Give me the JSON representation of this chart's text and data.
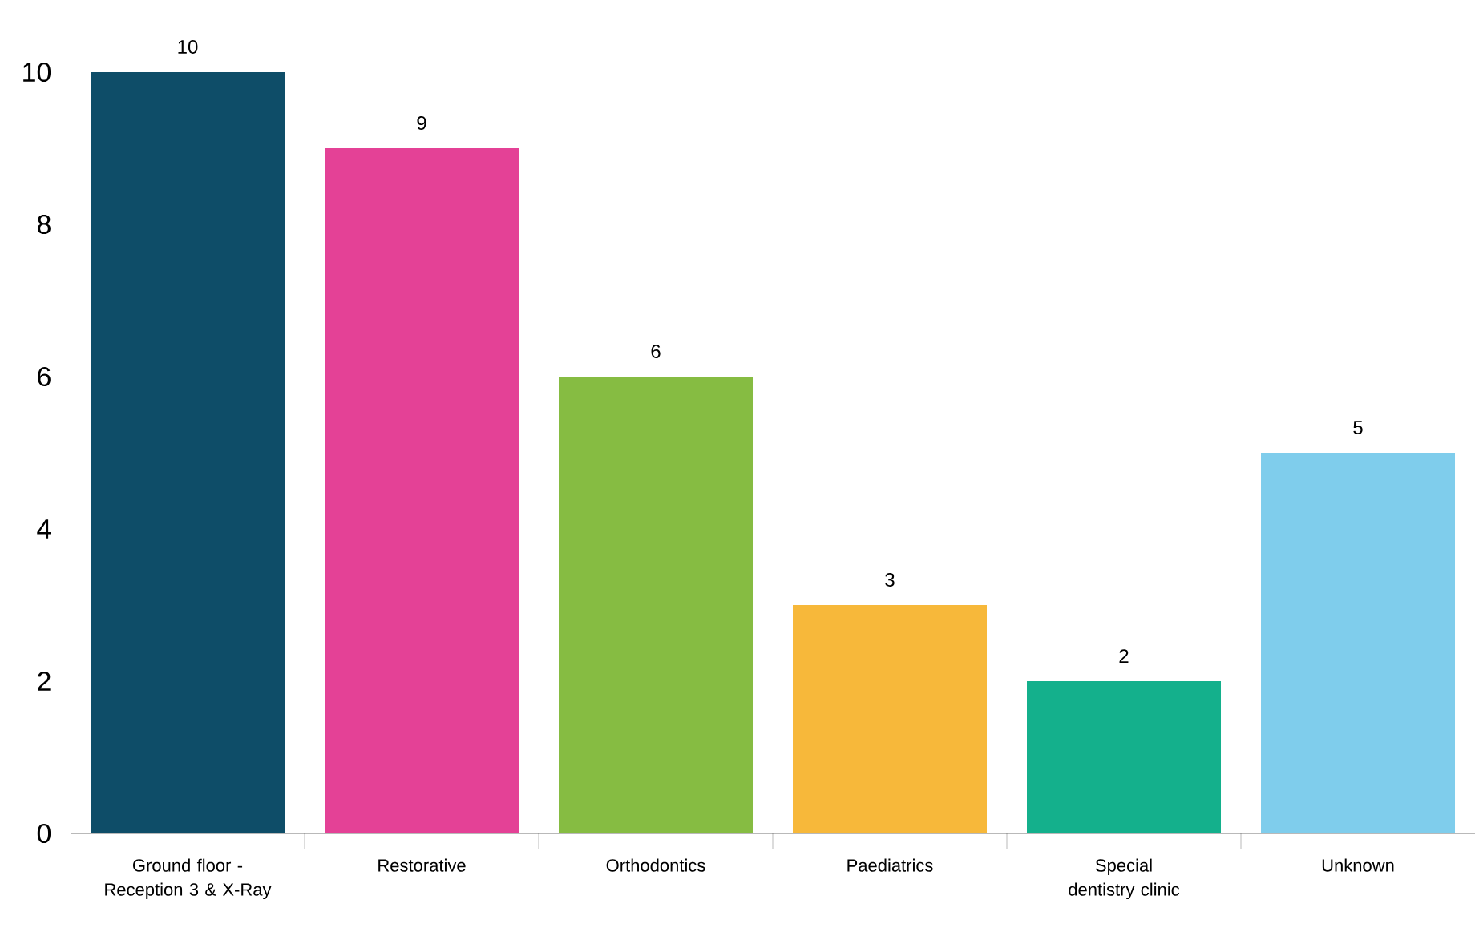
{
  "chart_data": {
    "type": "bar",
    "categories": [
      "Ground floor - Reception 3 & X-Ray",
      "Restorative",
      "Orthodontics",
      "Paediatrics",
      "Special dentistry clinic",
      "Unknown"
    ],
    "values": [
      10,
      9,
      6,
      3,
      2,
      5
    ],
    "colors": [
      "#0e4d68",
      "#e44196",
      "#86bc42",
      "#f7b83a",
      "#14b08c",
      "#7fcdec"
    ],
    "ylim": [
      0,
      10
    ],
    "yticks": [
      0,
      2,
      4,
      6,
      8,
      10
    ],
    "data_labels": true
  }
}
